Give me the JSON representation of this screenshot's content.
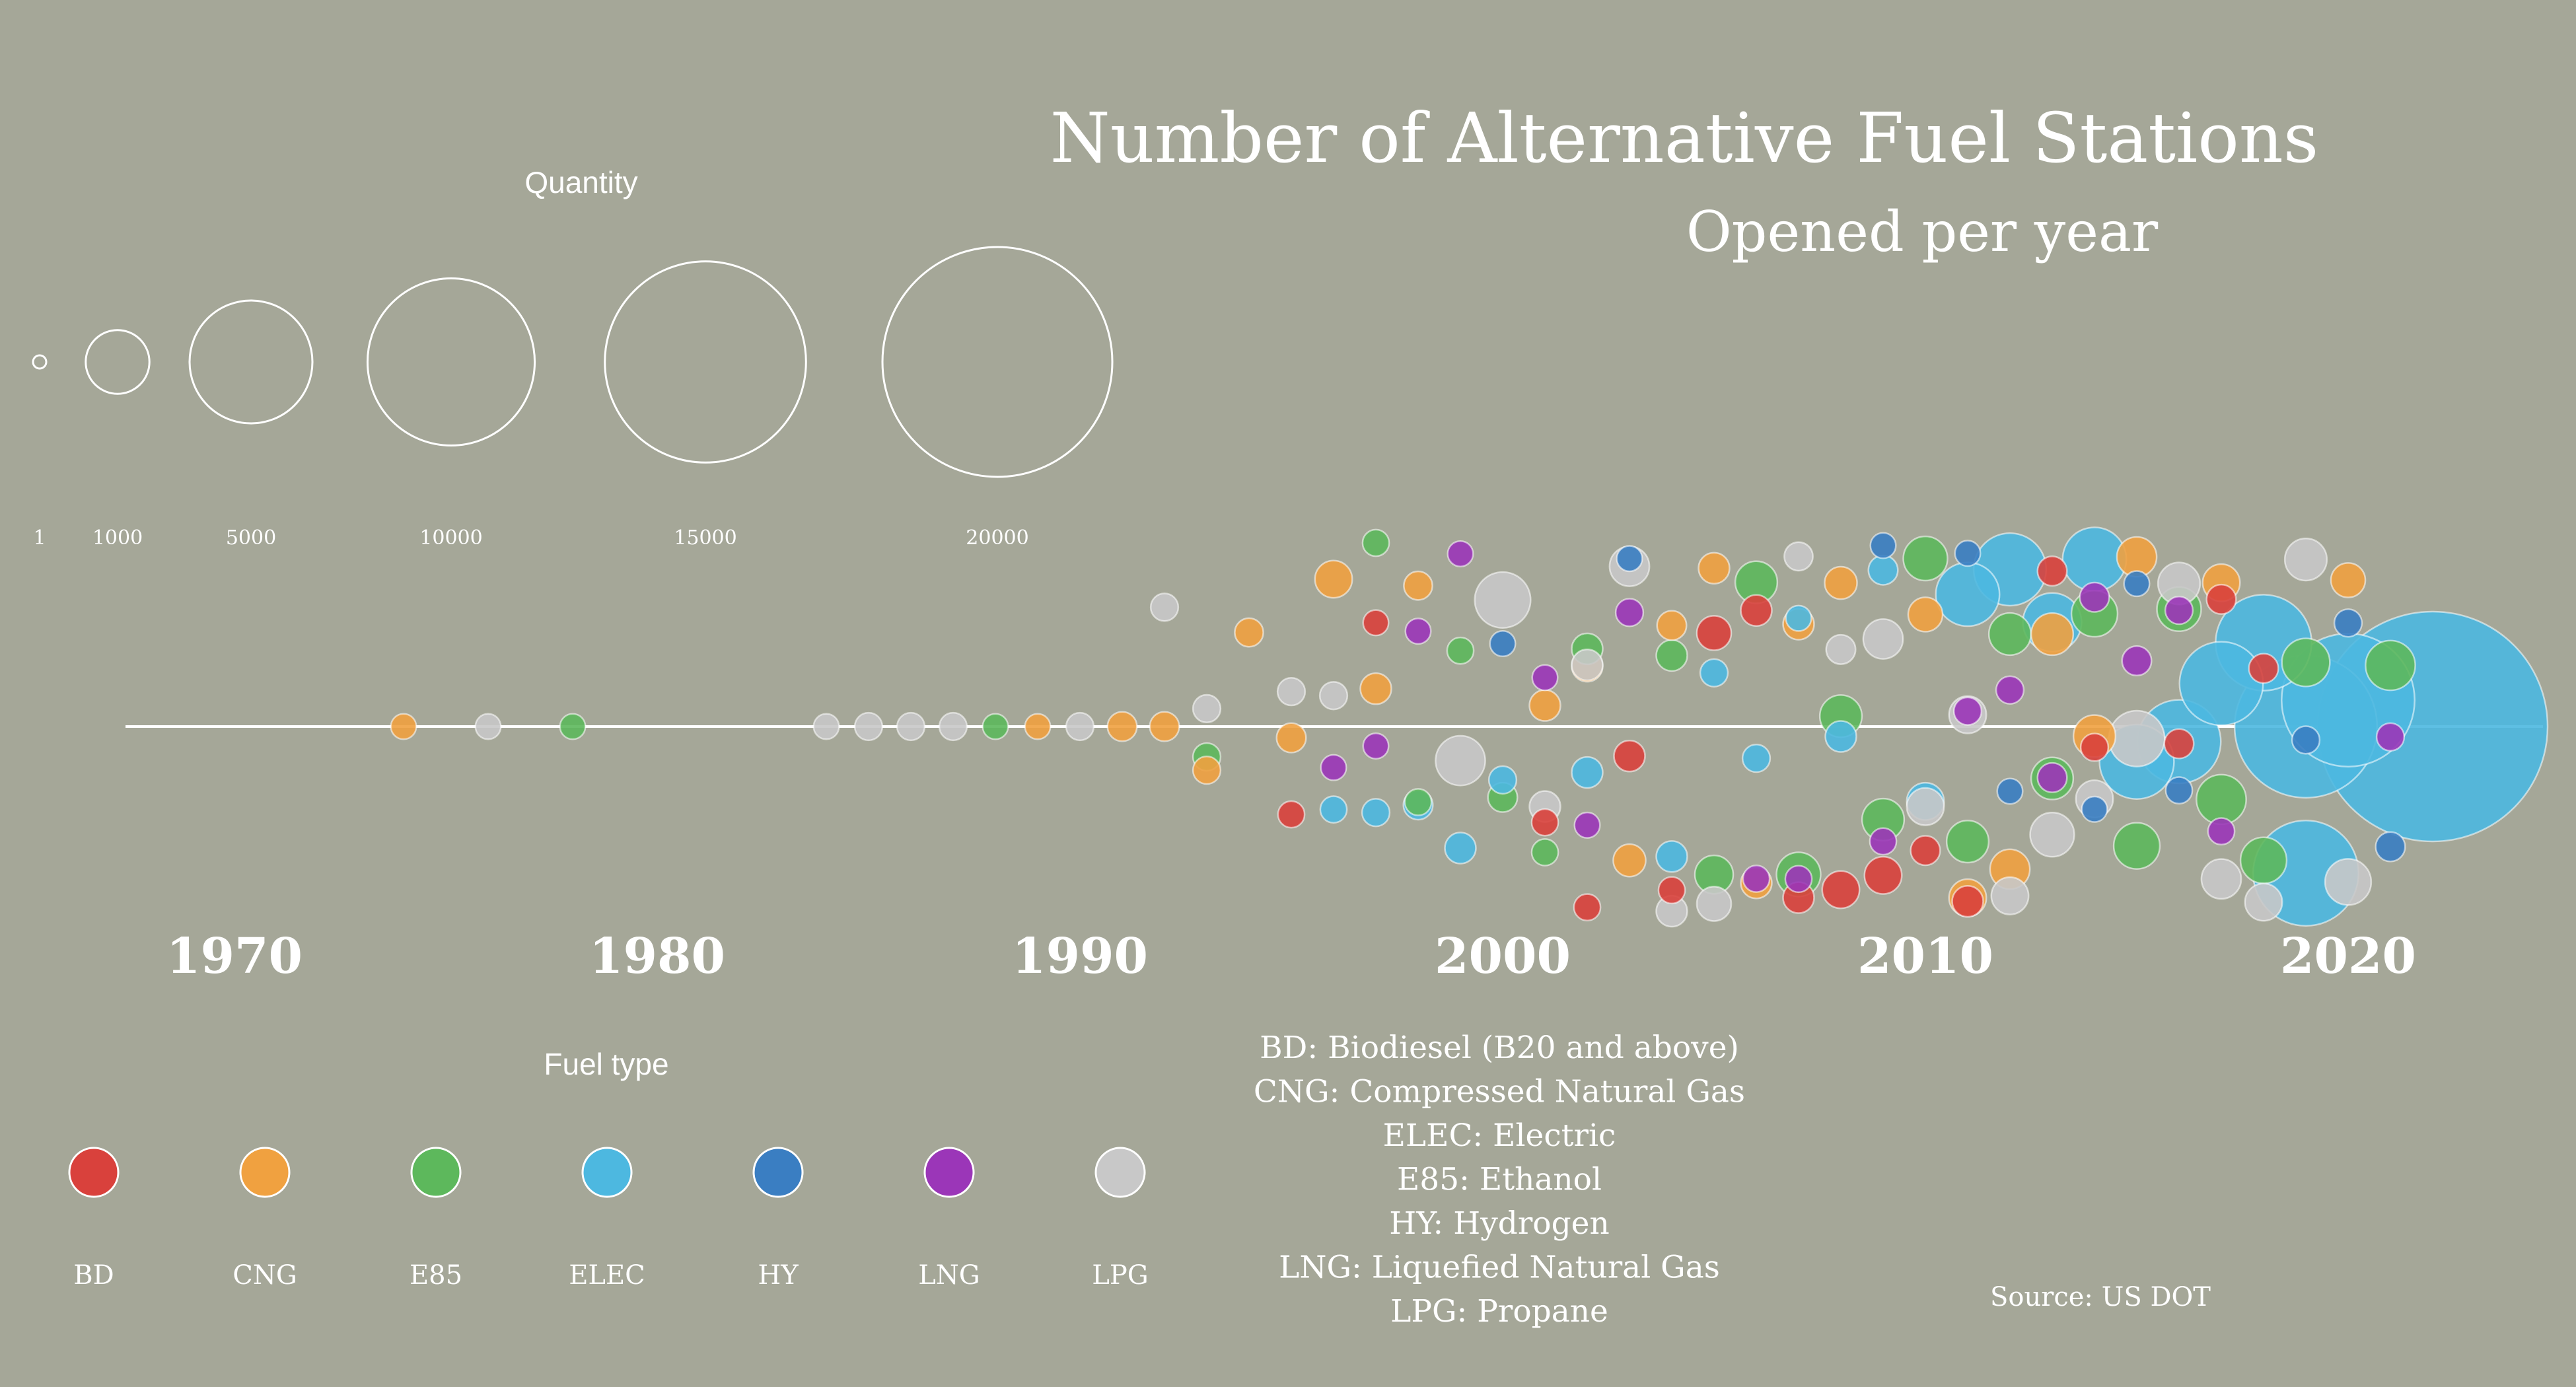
{
  "chart_data": {
    "type": "scatter",
    "title": "Number of Alternative Fuel Stations",
    "subtitle": "Opened per year",
    "x_ticks": [
      "1970",
      "1980",
      "1990",
      "2000",
      "2010",
      "2020"
    ],
    "size_legend": {
      "title": "Quantity",
      "entries": [
        {
          "label": "1",
          "value": 1
        },
        {
          "label": "1000",
          "value": 1000
        },
        {
          "label": "5000",
          "value": 5000
        },
        {
          "label": "10000",
          "value": 10000
        },
        {
          "label": "15000",
          "value": 15000
        },
        {
          "label": "20000",
          "value": 20000
        }
      ]
    },
    "color_legend": {
      "title": "Fuel type",
      "entries": [
        {
          "code": "BD",
          "color": "#d9413c"
        },
        {
          "code": "CNG",
          "color": "#f0a140"
        },
        {
          "code": "E85",
          "color": "#5db85c"
        },
        {
          "code": "ELEC",
          "color": "#4db8e0"
        },
        {
          "code": "HY",
          "color": "#3a7ec2"
        },
        {
          "code": "LNG",
          "color": "#9b36b8"
        },
        {
          "code": "LPG",
          "color": "#c8c8c8"
        }
      ]
    },
    "definitions": [
      "BD: Biodiesel (B20 and above)",
      "CNG: Compressed Natural Gas",
      "ELEC: Electric",
      "E85: Ethanol",
      "HY: Hydrogen",
      "LNG: Liquefied Natural Gas",
      "LPG: Propane"
    ],
    "source": "Source: US DOT",
    "points": [
      {
        "year": 1974,
        "type": "CNG",
        "qty": 40
      },
      {
        "year": 1976,
        "type": "LPG",
        "qty": 40
      },
      {
        "year": 1978,
        "type": "E85",
        "qty": 40
      },
      {
        "year": 1984,
        "type": "LPG",
        "qty": 40
      },
      {
        "year": 1985,
        "type": "LPG",
        "qty": 60
      },
      {
        "year": 1986,
        "type": "LPG",
        "qty": 60
      },
      {
        "year": 1987,
        "type": "LPG",
        "qty": 60
      },
      {
        "year": 1988,
        "type": "E85",
        "qty": 40
      },
      {
        "year": 1989,
        "type": "CNG",
        "qty": 40
      },
      {
        "year": 1990,
        "type": "LPG",
        "qty": 60
      },
      {
        "year": 1991,
        "type": "CNG",
        "qty": 80
      },
      {
        "year": 1992,
        "type": "CNG",
        "qty": 80
      },
      {
        "year": 1992,
        "type": "LPG",
        "qty": 60
      },
      {
        "year": 1993,
        "type": "E85",
        "qty": 60
      },
      {
        "year": 1993,
        "type": "LPG",
        "qty": 60
      },
      {
        "year": 1993,
        "type": "CNG",
        "qty": 60
      },
      {
        "year": 1994,
        "type": "CNG",
        "qty": 70
      },
      {
        "year": 1995,
        "type": "BD",
        "qty": 50
      },
      {
        "year": 1995,
        "type": "LPG",
        "qty": 60
      },
      {
        "year": 1995,
        "type": "CNG",
        "qty": 80
      },
      {
        "year": 1996,
        "type": "LPG",
        "qty": 60
      },
      {
        "year": 1996,
        "type": "ELEC",
        "qty": 50
      },
      {
        "year": 1996,
        "type": "CNG",
        "qty": 200
      },
      {
        "year": 1996,
        "type": "LNG",
        "qty": 40
      },
      {
        "year": 1997,
        "type": "CNG",
        "qty": 100
      },
      {
        "year": 1997,
        "type": "ELEC",
        "qty": 60
      },
      {
        "year": 1997,
        "type": "E85",
        "qty": 50
      },
      {
        "year": 1997,
        "type": "LNG",
        "qty": 40
      },
      {
        "year": 1997,
        "type": "BD",
        "qty": 40
      },
      {
        "year": 1998,
        "type": "E85",
        "qty": 50
      },
      {
        "year": 1998,
        "type": "CNG",
        "qty": 70
      },
      {
        "year": 1998,
        "type": "ELEC",
        "qty": 80
      },
      {
        "year": 1998,
        "type": "LNG",
        "qty": 40
      },
      {
        "year": 1999,
        "type": "LPG",
        "qty": 500
      },
      {
        "year": 1999,
        "type": "E85",
        "qty": 50
      },
      {
        "year": 1999,
        "type": "ELEC",
        "qty": 100
      },
      {
        "year": 1999,
        "type": "LNG",
        "qty": 40
      },
      {
        "year": 2000,
        "type": "ELEC",
        "qty": 60
      },
      {
        "year": 2000,
        "type": "LPG",
        "qty": 700
      },
      {
        "year": 2000,
        "type": "E85",
        "qty": 80
      },
      {
        "year": 2000,
        "type": "HY",
        "qty": 40
      },
      {
        "year": 2001,
        "type": "E85",
        "qty": 50
      },
      {
        "year": 2001,
        "type": "CNG",
        "qty": 100
      },
      {
        "year": 2001,
        "type": "BD",
        "qty": 50
      },
      {
        "year": 2001,
        "type": "LNG",
        "qty": 40
      },
      {
        "year": 2001,
        "type": "LPG",
        "qty": 100
      },
      {
        "year": 2002,
        "type": "CNG",
        "qty": 100
      },
      {
        "year": 2002,
        "type": "BD",
        "qty": 50
      },
      {
        "year": 2002,
        "type": "E85",
        "qty": 100
      },
      {
        "year": 2002,
        "type": "ELEC",
        "qty": 100
      },
      {
        "year": 2002,
        "type": "LPG",
        "qty": 100
      },
      {
        "year": 2002,
        "type": "LNG",
        "qty": 40
      },
      {
        "year": 2003,
        "type": "LNG",
        "qty": 60
      },
      {
        "year": 2003,
        "type": "BD",
        "qty": 100
      },
      {
        "year": 2003,
        "type": "LPG",
        "qty": 250
      },
      {
        "year": 2003,
        "type": "CNG",
        "qty": 120
      },
      {
        "year": 2003,
        "type": "HY",
        "qty": 40
      },
      {
        "year": 2004,
        "type": "ELEC",
        "qty": 100
      },
      {
        "year": 2004,
        "type": "CNG",
        "qty": 80
      },
      {
        "year": 2004,
        "type": "LPG",
        "qty": 100
      },
      {
        "year": 2004,
        "type": "E85",
        "qty": 100
      },
      {
        "year": 2004,
        "type": "BD",
        "qty": 50
      },
      {
        "year": 2005,
        "type": "BD",
        "qty": 150
      },
      {
        "year": 2005,
        "type": "LPG",
        "qty": 150
      },
      {
        "year": 2005,
        "type": "CNG",
        "qty": 100
      },
      {
        "year": 2005,
        "type": "E85",
        "qty": 220
      },
      {
        "year": 2005,
        "type": "ELEC",
        "qty": 60
      },
      {
        "year": 2006,
        "type": "CNG",
        "qty": 100
      },
      {
        "year": 2006,
        "type": "E85",
        "qty": 300
      },
      {
        "year": 2006,
        "type": "LNG",
        "qty": 50
      },
      {
        "year": 2006,
        "type": "BD",
        "qty": 100
      },
      {
        "year": 2006,
        "type": "ELEC",
        "qty": 60
      },
      {
        "year": 2007,
        "type": "ELEC",
        "qty": 40
      },
      {
        "year": 2007,
        "type": "LNG",
        "qty": 50
      },
      {
        "year": 2007,
        "type": "LPG",
        "qty": 70
      },
      {
        "year": 2007,
        "type": "BD",
        "qty": 100
      },
      {
        "year": 2007,
        "type": "CNG",
        "qty": 100
      },
      {
        "year": 2007,
        "type": "E85",
        "qty": 350
      },
      {
        "year": 2008,
        "type": "LPG",
        "qty": 80
      },
      {
        "year": 2008,
        "type": "BD",
        "qty": 200
      },
      {
        "year": 2008,
        "type": "E85",
        "qty": 300
      },
      {
        "year": 2008,
        "type": "ELEC",
        "qty": 100
      },
      {
        "year": 2008,
        "type": "CNG",
        "qty": 120
      },
      {
        "year": 2009,
        "type": "LNG",
        "qty": 50
      },
      {
        "year": 2009,
        "type": "HY",
        "qty": 40
      },
      {
        "year": 2009,
        "type": "BD",
        "qty": 200
      },
      {
        "year": 2009,
        "type": "ELEC",
        "qty": 80
      },
      {
        "year": 2009,
        "type": "E85",
        "qty": 300
      },
      {
        "year": 2009,
        "type": "LPG",
        "qty": 250
      },
      {
        "year": 2010,
        "type": "ELEC",
        "qty": 200
      },
      {
        "year": 2010,
        "type": "E85",
        "qty": 350
      },
      {
        "year": 2010,
        "type": "LPG",
        "qty": 200
      },
      {
        "year": 2010,
        "type": "CNG",
        "qty": 150
      },
      {
        "year": 2010,
        "type": "BD",
        "qty": 80
      },
      {
        "year": 2011,
        "type": "LNG",
        "qty": 60
      },
      {
        "year": 2011,
        "type": "CNG",
        "qty": 200
      },
      {
        "year": 2011,
        "type": "ELEC",
        "qty": 1000
      },
      {
        "year": 2011,
        "type": "E85",
        "qty": 300
      },
      {
        "year": 2011,
        "type": "HY",
        "qty": 40
      },
      {
        "year": 2011,
        "type": "BD",
        "qty": 100
      },
      {
        "year": 2011,
        "type": "LPG",
        "qty": 200
      },
      {
        "year": 2012,
        "type": "HY",
        "qty": 40
      },
      {
        "year": 2012,
        "type": "LNG",
        "qty": 60
      },
      {
        "year": 2012,
        "type": "LPG",
        "qty": 200
      },
      {
        "year": 2012,
        "type": "ELEC",
        "qty": 1400
      },
      {
        "year": 2012,
        "type": "CNG",
        "qty": 250
      },
      {
        "year": 2012,
        "type": "E85",
        "qty": 300
      },
      {
        "year": 2013,
        "type": "LPG",
        "qty": 350
      },
      {
        "year": 2013,
        "type": "ELEC",
        "qty": 800
      },
      {
        "year": 2013,
        "type": "E85",
        "qty": 300
      },
      {
        "year": 2013,
        "type": "CNG",
        "qty": 300
      },
      {
        "year": 2013,
        "type": "LNG",
        "qty": 80
      },
      {
        "year": 2013,
        "type": "BD",
        "qty": 80
      },
      {
        "year": 2014,
        "type": "CNG",
        "qty": 300
      },
      {
        "year": 2014,
        "type": "ELEC",
        "qty": 1000
      },
      {
        "year": 2014,
        "type": "HY",
        "qty": 40
      },
      {
        "year": 2014,
        "type": "LNG",
        "qty": 80
      },
      {
        "year": 2014,
        "type": "BD",
        "qty": 60
      },
      {
        "year": 2014,
        "type": "E85",
        "qty": 400
      },
      {
        "year": 2014,
        "type": "LPG",
        "qty": 200
      },
      {
        "year": 2015,
        "type": "LNG",
        "qty": 80
      },
      {
        "year": 2015,
        "type": "E85",
        "qty": 400
      },
      {
        "year": 2015,
        "type": "HY",
        "qty": 40
      },
      {
        "year": 2015,
        "type": "LPG",
        "qty": 700
      },
      {
        "year": 2015,
        "type": "CNG",
        "qty": 250
      },
      {
        "year": 2015,
        "type": "ELEC",
        "qty": 1500
      },
      {
        "year": 2016,
        "type": "E85",
        "qty": 350
      },
      {
        "year": 2016,
        "type": "ELEC",
        "qty": 2000
      },
      {
        "year": 2016,
        "type": "LPG",
        "qty": 300
      },
      {
        "year": 2016,
        "type": "HY",
        "qty": 50
      },
      {
        "year": 2016,
        "type": "LNG",
        "qty": 60
      },
      {
        "year": 2016,
        "type": "BD",
        "qty": 80
      },
      {
        "year": 2017,
        "type": "ELEC",
        "qty": 2000
      },
      {
        "year": 2017,
        "type": "LPG",
        "qty": 250
      },
      {
        "year": 2017,
        "type": "BD",
        "qty": 80
      },
      {
        "year": 2017,
        "type": "E85",
        "qty": 500
      },
      {
        "year": 2017,
        "type": "CNG",
        "qty": 200
      },
      {
        "year": 2017,
        "type": "LNG",
        "qty": 50
      },
      {
        "year": 2018,
        "type": "ELEC",
        "qty": 2800
      },
      {
        "year": 2018,
        "type": "LPG",
        "qty": 200
      },
      {
        "year": 2018,
        "type": "BD",
        "qty": 80
      },
      {
        "year": 2018,
        "type": "E85",
        "qty": 400
      },
      {
        "year": 2019,
        "type": "E85",
        "qty": 450
      },
      {
        "year": 2019,
        "type": "HY",
        "qty": 60
      },
      {
        "year": 2019,
        "type": "ELEC",
        "qty": 3500
      },
      {
        "year": 2019,
        "type": "ELEC",
        "qty": 7000
      },
      {
        "year": 2019,
        "type": "LPG",
        "qty": 300
      },
      {
        "year": 2020,
        "type": "ELEC",
        "qty": 6000
      },
      {
        "year": 2020,
        "type": "CNG",
        "qty": 150
      },
      {
        "year": 2020,
        "type": "LPG",
        "qty": 400
      },
      {
        "year": 2020,
        "type": "HY",
        "qty": 60
      },
      {
        "year": 2021,
        "type": "HY",
        "qty": 80
      },
      {
        "year": 2021,
        "type": "E85",
        "qty": 500
      },
      {
        "year": 2021,
        "type": "LNG",
        "qty": 60
      },
      {
        "year": 2022,
        "type": "ELEC",
        "qty": 20000
      }
    ]
  }
}
